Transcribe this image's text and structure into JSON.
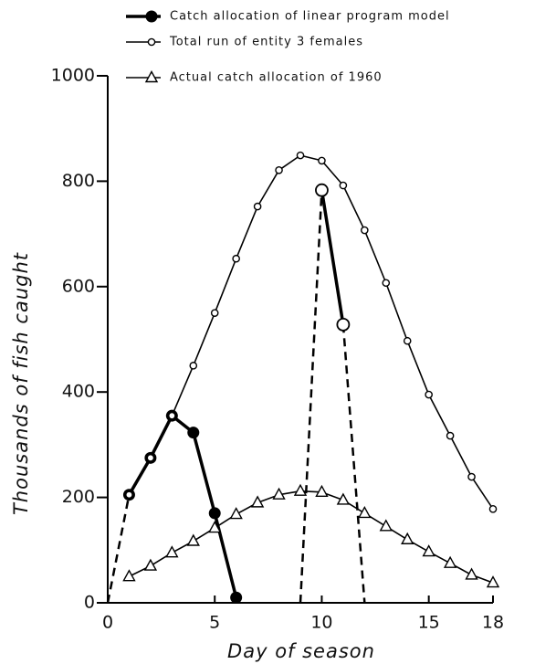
{
  "chart_data": {
    "type": "line",
    "xlabel": "Day of season",
    "ylabel": "Thousands of fish caught",
    "xlim": [
      0,
      18
    ],
    "xticks": [
      0,
      5,
      10,
      15,
      18
    ],
    "ylim": [
      0,
      1000
    ],
    "yticks": [
      0,
      200,
      400,
      600,
      800,
      1000
    ],
    "series": [
      {
        "name": "Catch allocation of linear program model",
        "color": "#000",
        "x": [
          0,
          1,
          2,
          3,
          4,
          5,
          6,
          null,
          9,
          10,
          11,
          12
        ],
        "values": [
          0,
          205,
          275,
          355,
          323,
          170,
          10,
          null,
          0,
          783,
          528,
          0
        ],
        "markers": [
          "none",
          "filled",
          "filled",
          "filled",
          "filled",
          "filled",
          "filled",
          "none",
          "none",
          "open-large",
          "open-large",
          "none"
        ]
      },
      {
        "name": "Total run of entity 3 females",
        "color": "#000",
        "x": [
          1,
          2,
          3,
          4,
          5,
          6,
          7,
          8,
          9,
          10,
          11,
          12,
          13,
          14,
          15,
          16,
          17,
          18
        ],
        "values": [
          205,
          275,
          355,
          450,
          550,
          653,
          752,
          821,
          849,
          839,
          792,
          707,
          607,
          497,
          395,
          317,
          239,
          178
        ],
        "marker": "open-small"
      },
      {
        "name": "Actual catch allocation of 1960",
        "color": "#000",
        "x": [
          1,
          2,
          3,
          4,
          5,
          6,
          7,
          8,
          9,
          10,
          11,
          12,
          13,
          14,
          15,
          16,
          17,
          18
        ],
        "values": [
          50,
          70,
          95,
          117,
          142,
          168,
          190,
          205,
          212,
          210,
          195,
          170,
          145,
          120,
          97,
          75,
          53,
          38
        ],
        "marker": "triangle"
      }
    ]
  }
}
